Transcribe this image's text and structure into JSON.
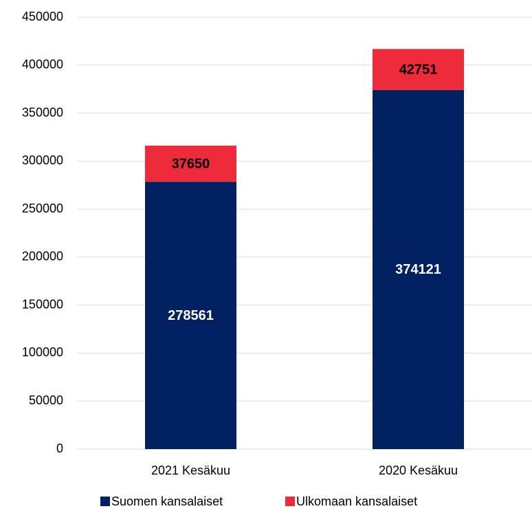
{
  "chart_data": {
    "type": "stacked_bar",
    "categories": [
      "2021 Kesäkuu",
      "2020 Kesäkuu"
    ],
    "series": [
      {
        "name": "Suomen kansalaiset",
        "color": "#002060",
        "values": [
          278561,
          374121
        ]
      },
      {
        "name": "Ulkomaan kansalaiset",
        "color": "#ee2b3b",
        "values": [
          37650,
          42751
        ]
      }
    ],
    "ylim": [
      0,
      450000
    ],
    "yticks": [
      0,
      50000,
      100000,
      150000,
      200000,
      250000,
      300000,
      350000,
      400000,
      450000
    ],
    "grid": true,
    "legend": "bottom"
  }
}
